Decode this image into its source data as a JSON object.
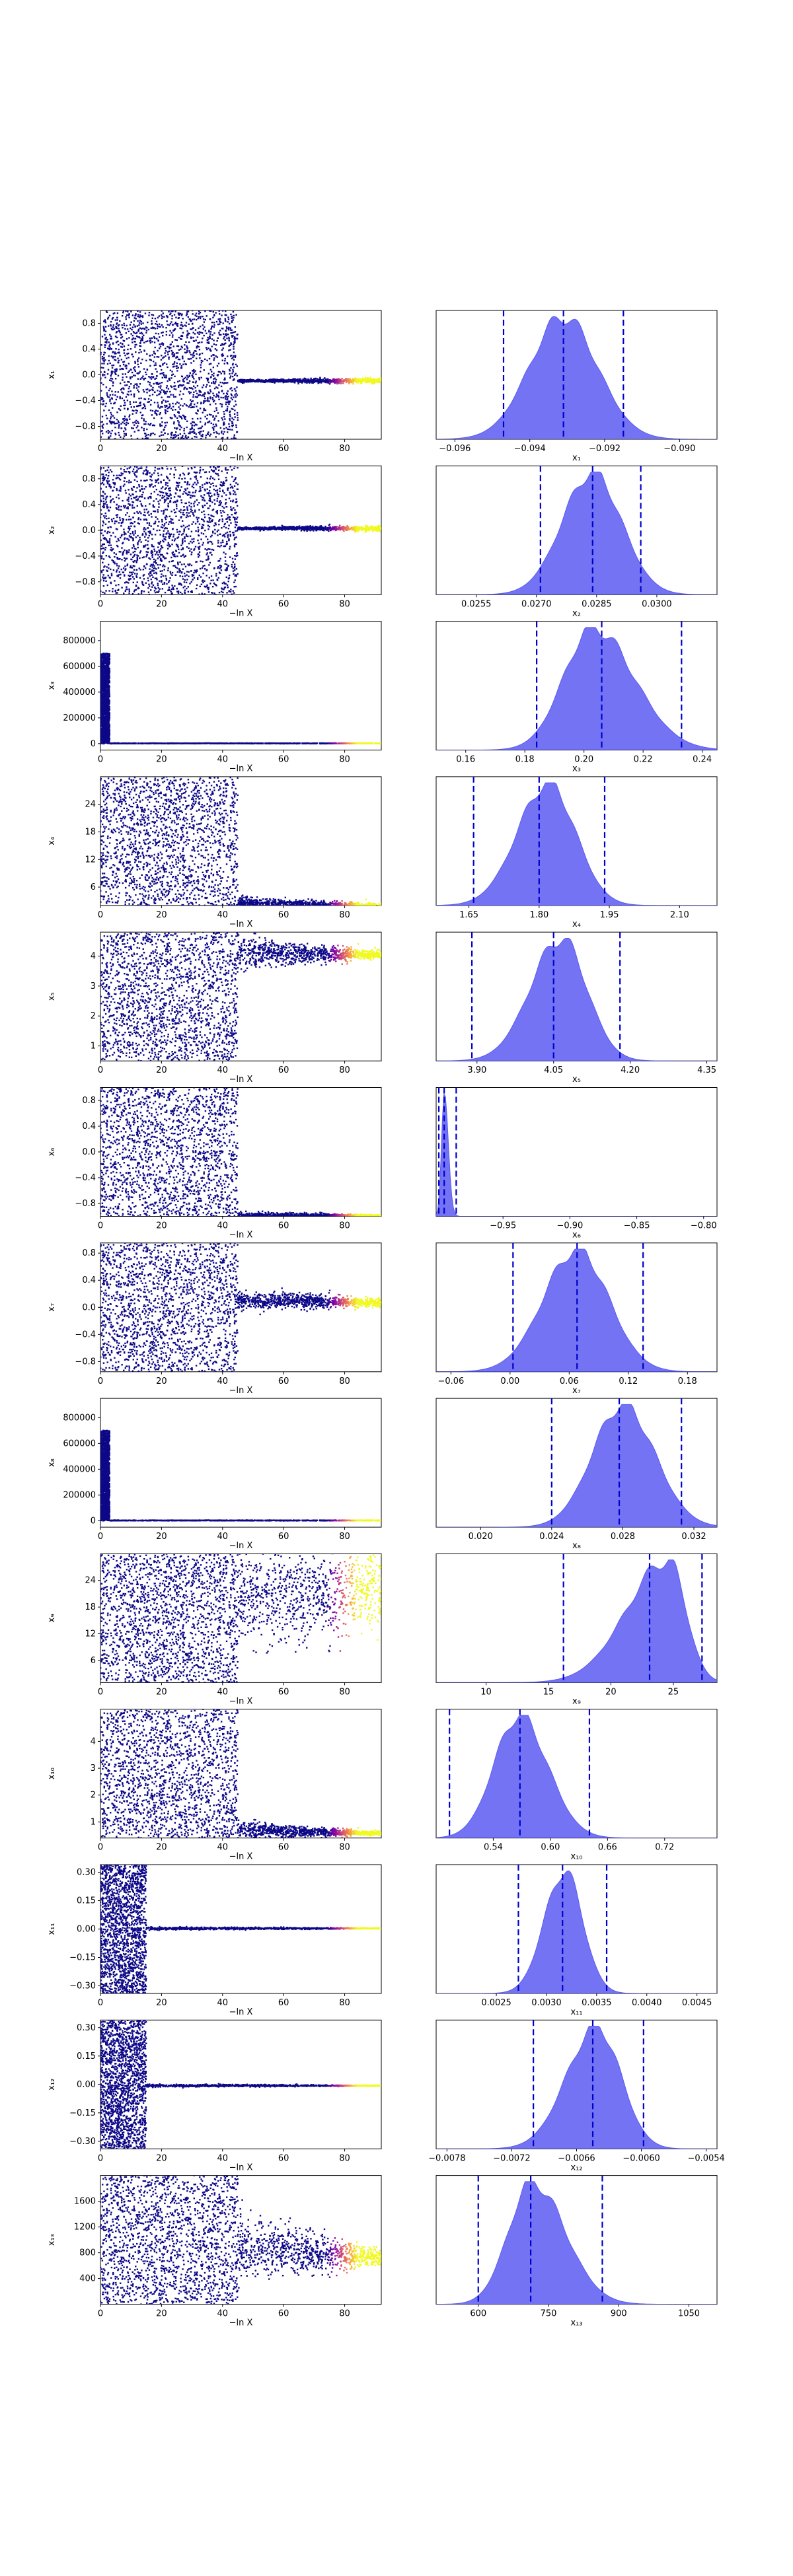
{
  "figure": {
    "chart_data": [
      {
        "type": "scatter",
        "panel": "trace",
        "xlabel": "−ln X",
        "ylabel": "x₁",
        "xlim": [
          0,
          92
        ],
        "ylim": [
          -1,
          1
        ],
        "xticks": [
          0,
          20,
          40,
          60,
          80
        ],
        "yticks": [
          -0.8,
          -0.4,
          0.0,
          0.4,
          0.8
        ],
        "ytick_labels": [
          "−0.8",
          "−0.4",
          "0.0",
          "0.4",
          "0.8"
        ],
        "cut": 45,
        "spread_low": [
          -1,
          1
        ],
        "converged": -0.093,
        "wiggle": 0.01,
        "post": [
          -0.093,
          0.02
        ],
        "colormap": "plasma"
      },
      {
        "type": "area",
        "panel": "posterior",
        "xlabel": "x₁",
        "xlim": [
          -0.0965,
          -0.089
        ],
        "xticks": [
          -0.096,
          -0.094,
          -0.092,
          -0.09
        ],
        "xtick_labels": [
          "−0.096",
          "−0.094",
          "−0.092",
          "−0.090"
        ],
        "mode": -0.0931,
        "sigma_left": 0.0009,
        "sigma_right": 0.0009,
        "quantiles": [
          -0.0947,
          -0.0931,
          -0.0915
        ],
        "fill_color": "#5b5bf2",
        "line_color": "#0000cc"
      },
      {
        "type": "scatter",
        "panel": "trace",
        "xlabel": "−ln X",
        "ylabel": "x₂",
        "xlim": [
          0,
          92
        ],
        "ylim": [
          -1,
          1
        ],
        "xticks": [
          0,
          20,
          40,
          60,
          80
        ],
        "yticks": [
          -0.8,
          -0.4,
          0.0,
          0.4,
          0.8
        ],
        "ytick_labels": [
          "−0.8",
          "−0.4",
          "0.0",
          "0.4",
          "0.8"
        ],
        "cut": 45,
        "spread_low": [
          -1,
          1
        ],
        "converged": 0.0285,
        "wiggle": 0.01,
        "post": [
          0.0285,
          0.02
        ],
        "colormap": "plasma"
      },
      {
        "type": "area",
        "panel": "posterior",
        "xlabel": "x₂",
        "xlim": [
          0.0245,
          0.0315
        ],
        "xticks": [
          0.0255,
          0.027,
          0.0285,
          0.03
        ],
        "xtick_labels": [
          "0.0255",
          "0.0270",
          "0.0285",
          "0.0300"
        ],
        "mode": 0.0284,
        "sigma_left": 0.00075,
        "sigma_right": 0.00072,
        "quantiles": [
          0.0271,
          0.0284,
          0.0296
        ],
        "fill_color": "#5b5bf2",
        "line_color": "#0000cc"
      },
      {
        "type": "scatter",
        "panel": "trace",
        "xlabel": "−ln X",
        "ylabel": "x₃",
        "xlim": [
          0,
          92
        ],
        "ylim": [
          -50000,
          950000
        ],
        "xticks": [
          0,
          20,
          40,
          60,
          80
        ],
        "yticks": [
          0,
          200000,
          400000,
          600000,
          800000
        ],
        "ytick_labels": [
          "0",
          "200000",
          "400000",
          "600000",
          "800000"
        ],
        "cut": 3,
        "spread_low": [
          0,
          700000
        ],
        "converged": 2000,
        "wiggle": 1000,
        "post": [
          2000,
          1000
        ],
        "colormap": "plasma"
      },
      {
        "type": "area",
        "panel": "posterior",
        "xlabel": "x₃",
        "xlim": [
          0.15,
          0.245
        ],
        "xticks": [
          0.16,
          0.18,
          0.2,
          0.22,
          0.24
        ],
        "xtick_labels": [
          "0.16",
          "0.18",
          "0.20",
          "0.22",
          "0.24"
        ],
        "mode": 0.203,
        "sigma_left": 0.0098,
        "sigma_right": 0.0138,
        "quantiles": [
          0.184,
          0.206,
          0.233
        ],
        "fill_color": "#5b5bf2",
        "line_color": "#0000cc"
      },
      {
        "type": "scatter",
        "panel": "trace",
        "xlabel": "−ln X",
        "ylabel": "x₄",
        "xlim": [
          0,
          92
        ],
        "ylim": [
          2,
          30
        ],
        "xticks": [
          0,
          20,
          40,
          60,
          80
        ],
        "yticks": [
          6,
          12,
          18,
          24
        ],
        "ytick_labels": [
          "6",
          "12",
          "18",
          "24"
        ],
        "cut": 45,
        "spread_low": [
          2,
          30
        ],
        "converged": 2.6,
        "wiggle": 0.6,
        "post": [
          1.8,
          0.3
        ],
        "colormap": "plasma"
      },
      {
        "type": "area",
        "panel": "posterior",
        "xlabel": "x₄",
        "xlim": [
          1.58,
          2.18
        ],
        "xticks": [
          1.65,
          1.8,
          1.95,
          2.1
        ],
        "xtick_labels": [
          "1.65",
          "1.80",
          "1.95",
          "2.10"
        ],
        "mode": 1.82,
        "sigma_left": 0.066,
        "sigma_right": 0.058,
        "quantiles": [
          1.66,
          1.8,
          1.94
        ],
        "fill_color": "#5b5bf2",
        "line_color": "#0000cc"
      },
      {
        "type": "scatter",
        "panel": "trace",
        "xlabel": "−ln X",
        "ylabel": "x₅",
        "xlim": [
          0,
          92
        ],
        "ylim": [
          0.5,
          4.8
        ],
        "xticks": [
          0,
          20,
          40,
          60,
          80
        ],
        "yticks": [
          1,
          2,
          3,
          4
        ],
        "ytick_labels": [
          "1",
          "2",
          "3",
          "4"
        ],
        "cut": 45,
        "spread_low": [
          0.5,
          4.8
        ],
        "converged": 4.1,
        "wiggle": 0.25,
        "post": [
          4.05,
          0.06
        ],
        "colormap": "plasma"
      },
      {
        "type": "area",
        "panel": "posterior",
        "xlabel": "x₅",
        "xlim": [
          3.82,
          4.37
        ],
        "xticks": [
          3.9,
          4.05,
          4.2,
          4.35
        ],
        "xtick_labels": [
          "3.90",
          "4.05",
          "4.20",
          "4.35"
        ],
        "mode": 4.065,
        "sigma_left": 0.06,
        "sigma_right": 0.05,
        "quantiles": [
          3.89,
          4.05,
          4.18
        ],
        "fill_color": "#5b5bf2",
        "line_color": "#0000cc"
      },
      {
        "type": "scatter",
        "panel": "trace",
        "xlabel": "−ln X",
        "ylabel": "x₆",
        "xlim": [
          0,
          92
        ],
        "ylim": [
          -1,
          1
        ],
        "xticks": [
          0,
          20,
          40,
          60,
          80
        ],
        "yticks": [
          -0.8,
          -0.4,
          0.0,
          0.4,
          0.8
        ],
        "ytick_labels": [
          "−0.8",
          "−0.4",
          "0.0",
          "0.4",
          "0.8"
        ],
        "cut": 45,
        "spread_low": [
          -1,
          1
        ],
        "converged": -0.99,
        "wiggle": 0.03,
        "post": [
          -0.99,
          0.005
        ],
        "colormap": "plasma"
      },
      {
        "type": "area",
        "panel": "posterior",
        "xlabel": "x₆",
        "xlim": [
          -1.0,
          -0.79
        ],
        "xticks": [
          -0.95,
          -0.9,
          -0.85,
          -0.8
        ],
        "xtick_labels": [
          "−0.95",
          "−0.90",
          "−0.85",
          "−0.80"
        ],
        "mode": -0.994,
        "sigma_left": 0.002,
        "sigma_right": 0.003,
        "quantiles": [
          -0.998,
          -0.994,
          -0.985
        ],
        "fill_color": "#5b5bf2",
        "line_color": "#0000cc"
      },
      {
        "type": "scatter",
        "panel": "trace",
        "xlabel": "−ln X",
        "ylabel": "x₇",
        "xlim": [
          0,
          92
        ],
        "ylim": [
          -0.95,
          0.95
        ],
        "xticks": [
          0,
          20,
          40,
          60,
          80
        ],
        "yticks": [
          -0.8,
          -0.4,
          0.0,
          0.4,
          0.8
        ],
        "ytick_labels": [
          "−0.8",
          "−0.4",
          "0.0",
          "0.4",
          "0.8"
        ],
        "cut": 45,
        "spread_low": [
          -0.95,
          0.95
        ],
        "converged": 0.1,
        "wiggle": 0.07,
        "post": [
          0.07,
          0.03
        ],
        "colormap": "plasma"
      },
      {
        "type": "area",
        "panel": "posterior",
        "xlabel": "x₇",
        "xlim": [
          -0.075,
          0.21
        ],
        "xticks": [
          -0.06,
          0.0,
          0.06,
          0.12,
          0.18
        ],
        "xtick_labels": [
          "−0.06",
          "0.00",
          "0.06",
          "0.12",
          "0.18"
        ],
        "mode": 0.068,
        "sigma_left": 0.034,
        "sigma_right": 0.032,
        "quantiles": [
          0.003,
          0.068,
          0.135
        ],
        "fill_color": "#5b5bf2",
        "line_color": "#0000cc"
      },
      {
        "type": "scatter",
        "panel": "trace",
        "xlabel": "−ln X",
        "ylabel": "x₈",
        "xlim": [
          0,
          92
        ],
        "ylim": [
          -50000,
          950000
        ],
        "xticks": [
          0,
          20,
          40,
          60,
          80
        ],
        "yticks": [
          0,
          200000,
          400000,
          600000,
          800000
        ],
        "ytick_labels": [
          "0",
          "200000",
          "400000",
          "600000",
          "800000"
        ],
        "cut": 3,
        "spread_low": [
          0,
          700000
        ],
        "converged": 2000,
        "wiggle": 1000,
        "post": [
          2000,
          1000
        ],
        "colormap": "plasma"
      },
      {
        "type": "area",
        "panel": "posterior",
        "xlabel": "x₈",
        "xlim": [
          0.0175,
          0.0333
        ],
        "xticks": [
          0.02,
          0.024,
          0.028,
          0.032
        ],
        "xtick_labels": [
          "0.020",
          "0.024",
          "0.028",
          "0.032"
        ],
        "mode": 0.028,
        "sigma_left": 0.0017,
        "sigma_right": 0.0018,
        "quantiles": [
          0.024,
          0.0278,
          0.0313
        ],
        "fill_color": "#5b5bf2",
        "line_color": "#0000cc"
      },
      {
        "type": "scatter",
        "panel": "trace",
        "xlabel": "−ln X",
        "ylabel": "x₉",
        "xlim": [
          0,
          92
        ],
        "ylim": [
          1,
          30
        ],
        "xticks": [
          0,
          20,
          40,
          60,
          80
        ],
        "yticks": [
          6,
          12,
          18,
          24
        ],
        "ytick_labels": [
          "6",
          "12",
          "18",
          "24"
        ],
        "cut": 45,
        "spread_low": [
          1,
          30
        ],
        "converged": 20,
        "wiggle": 6,
        "post": [
          22,
          4
        ],
        "colormap": "plasma"
      },
      {
        "type": "area",
        "panel": "posterior",
        "xlabel": "x₉",
        "xlim": [
          6,
          28.5
        ],
        "xticks": [
          10,
          15,
          20,
          25
        ],
        "xtick_labels": [
          "10",
          "15",
          "20",
          "25"
        ],
        "mode": 24.6,
        "sigma_left": 3.3,
        "sigma_right": 1.4,
        "quantiles": [
          16.2,
          23.1,
          27.3
        ],
        "fill_color": "#5b5bf2",
        "line_color": "#0000cc"
      },
      {
        "type": "scatter",
        "panel": "trace",
        "xlabel": "−ln X",
        "ylabel": "x₁₀",
        "xlim": [
          0,
          92
        ],
        "ylim": [
          0.4,
          5.2
        ],
        "xticks": [
          0,
          20,
          40,
          60,
          80
        ],
        "yticks": [
          1,
          2,
          3,
          4
        ],
        "ytick_labels": [
          "1",
          "2",
          "3",
          "4"
        ],
        "cut": 45,
        "spread_low": [
          0.4,
          5.2
        ],
        "converged": 0.7,
        "wiggle": 0.15,
        "post": [
          0.57,
          0.03
        ],
        "colormap": "plasma"
      },
      {
        "type": "area",
        "panel": "posterior",
        "xlabel": "x₁₀",
        "xlim": [
          0.48,
          0.775
        ],
        "xticks": [
          0.54,
          0.6,
          0.66,
          0.72
        ],
        "xtick_labels": [
          "0.54",
          "0.60",
          "0.66",
          "0.72"
        ],
        "mode": 0.567,
        "sigma_left": 0.026,
        "sigma_right": 0.03,
        "quantiles": [
          0.494,
          0.568,
          0.641
        ],
        "fill_color": "#5b5bf2",
        "line_color": "#0000cc"
      },
      {
        "type": "scatter",
        "panel": "trace",
        "xlabel": "−ln X",
        "ylabel": "x₁₁",
        "xlim": [
          0,
          92
        ],
        "ylim": [
          -0.34,
          0.34
        ],
        "xticks": [
          0,
          20,
          40,
          60,
          80
        ],
        "yticks": [
          -0.3,
          -0.15,
          0.0,
          0.15,
          0.3
        ],
        "ytick_labels": [
          "−0.30",
          "−0.15",
          "0.00",
          "0.15",
          "0.30"
        ],
        "cut": 15,
        "spread_low": [
          -0.34,
          0.34
        ],
        "converged": 0.003,
        "wiggle": 0.004,
        "post": [
          0.003,
          0.001
        ],
        "colormap": "plasma"
      },
      {
        "type": "area",
        "panel": "posterior",
        "xlabel": "x₁₁",
        "xlim": [
          0.0019,
          0.0047
        ],
        "xticks": [
          0.0025,
          0.003,
          0.0035,
          0.004,
          0.0045
        ],
        "xtick_labels": [
          "0.0025",
          "0.0030",
          "0.0035",
          "0.0040",
          "0.0045"
        ],
        "mode": 0.00318,
        "sigma_left": 0.0002,
        "sigma_right": 0.00018,
        "quantiles": [
          0.00272,
          0.00316,
          0.0036
        ],
        "fill_color": "#5b5bf2",
        "line_color": "#0000cc"
      },
      {
        "type": "scatter",
        "panel": "trace",
        "xlabel": "−ln X",
        "ylabel": "x₁₂",
        "xlim": [
          0,
          92
        ],
        "ylim": [
          -0.34,
          0.34
        ],
        "xticks": [
          0,
          20,
          40,
          60,
          80
        ],
        "yticks": [
          -0.3,
          -0.15,
          0.0,
          0.15,
          0.3
        ],
        "ytick_labels": [
          "−0.30",
          "−0.15",
          "0.00",
          "0.15",
          "0.30"
        ],
        "cut": 15,
        "spread_low": [
          -0.34,
          0.34
        ],
        "converged": -0.0065,
        "wiggle": 0.004,
        "post": [
          -0.0065,
          0.001
        ],
        "colormap": "plasma"
      },
      {
        "type": "area",
        "panel": "posterior",
        "xlabel": "x₁₂",
        "xlim": [
          -0.0079,
          -0.0053
        ],
        "xticks": [
          -0.0078,
          -0.0072,
          -0.0066,
          -0.006,
          -0.0054
        ],
        "xtick_labels": [
          "−0.0078",
          "−0.0072",
          "−0.0066",
          "−0.0060",
          "−0.0054"
        ],
        "mode": -0.00641,
        "sigma_left": 0.00028,
        "sigma_right": 0.00022,
        "quantiles": [
          -0.007,
          -0.00645,
          -0.00598
        ],
        "fill_color": "#5b5bf2",
        "line_color": "#0000cc"
      },
      {
        "type": "scatter",
        "panel": "trace",
        "xlabel": "−ln X",
        "ylabel": "x₁₃",
        "xlim": [
          0,
          92
        ],
        "ylim": [
          0,
          2000
        ],
        "xticks": [
          0,
          20,
          40,
          60,
          80
        ],
        "yticks": [
          400,
          800,
          1200,
          1600
        ],
        "ytick_labels": [
          "400",
          "800",
          "1200",
          "1600"
        ],
        "cut": 45,
        "spread_low": [
          0,
          2000
        ],
        "converged": 900,
        "wiggle": 250,
        "post": [
          710,
          60
        ],
        "colormap": "plasma"
      },
      {
        "type": "area",
        "panel": "posterior",
        "xlabel": "x₁₃",
        "xlim": [
          510,
          1110
        ],
        "xticks": [
          600,
          750,
          900,
          1050
        ],
        "xtick_labels": [
          "600",
          "750",
          "900",
          "1050"
        ],
        "mode": 715,
        "sigma_left": 50,
        "sigma_right": 70,
        "quantiles": [
          600,
          712,
          865
        ],
        "fill_color": "#5b5bf2",
        "line_color": "#0000cc"
      }
    ]
  }
}
